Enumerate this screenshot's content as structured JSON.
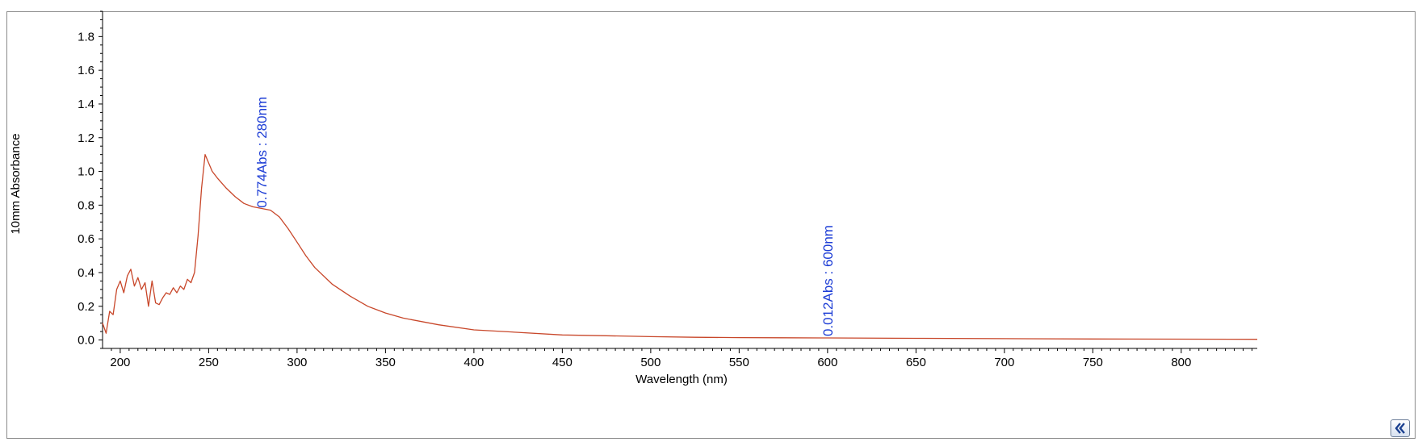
{
  "chart_data": {
    "type": "line",
    "title": "",
    "xlabel": "Wavelength (nm)",
    "ylabel": "10mm Absorbance",
    "xlim": [
      190,
      843
    ],
    "ylim": [
      -0.05,
      1.95
    ],
    "x_ticks": [
      200,
      250,
      300,
      350,
      400,
      450,
      500,
      550,
      600,
      650,
      700,
      750,
      800
    ],
    "y_ticks": [
      0.0,
      0.2,
      0.4,
      0.6,
      0.8,
      1.0,
      1.2,
      1.4,
      1.6,
      1.8
    ],
    "y_tick_labels": [
      "0.0",
      "0.2",
      "0.4",
      "0.6",
      "0.8",
      "1.0",
      "1.2",
      "1.4",
      "1.6",
      "1.8"
    ],
    "grid": false,
    "series": [
      {
        "color": "#c8472a",
        "x": [
          190,
          192,
          194,
          196,
          198,
          200,
          202,
          204,
          206,
          208,
          210,
          212,
          214,
          216,
          218,
          220,
          222,
          224,
          226,
          228,
          230,
          232,
          234,
          236,
          238,
          240,
          242,
          244,
          246,
          248,
          250,
          252,
          255,
          260,
          265,
          270,
          275,
          280,
          285,
          290,
          295,
          300,
          305,
          310,
          320,
          330,
          340,
          350,
          360,
          380,
          400,
          425,
          450,
          475,
          500,
          525,
          550,
          575,
          600,
          650,
          700,
          750,
          800,
          843
        ],
        "y": [
          0.1,
          0.04,
          0.17,
          0.15,
          0.3,
          0.35,
          0.28,
          0.38,
          0.42,
          0.32,
          0.37,
          0.3,
          0.34,
          0.2,
          0.35,
          0.22,
          0.21,
          0.25,
          0.28,
          0.27,
          0.31,
          0.28,
          0.32,
          0.3,
          0.36,
          0.34,
          0.4,
          0.62,
          0.9,
          1.1,
          1.05,
          1.0,
          0.96,
          0.9,
          0.85,
          0.81,
          0.79,
          0.78,
          0.77,
          0.73,
          0.66,
          0.58,
          0.5,
          0.43,
          0.33,
          0.26,
          0.2,
          0.16,
          0.13,
          0.09,
          0.06,
          0.045,
          0.03,
          0.025,
          0.02,
          0.016,
          0.014,
          0.013,
          0.012,
          0.01,
          0.008,
          0.006,
          0.005,
          0.004
        ]
      }
    ],
    "annotations": [
      {
        "x": 280,
        "y": 0.774,
        "text": "0.774Abs : 280nm",
        "color": "#1f3fd6"
      },
      {
        "x": 600,
        "y": 0.012,
        "text": "0.012Abs : 600nm",
        "color": "#1f3fd6"
      }
    ]
  },
  "ui": {
    "collapse_button": "collapse-chevrons-icon"
  }
}
